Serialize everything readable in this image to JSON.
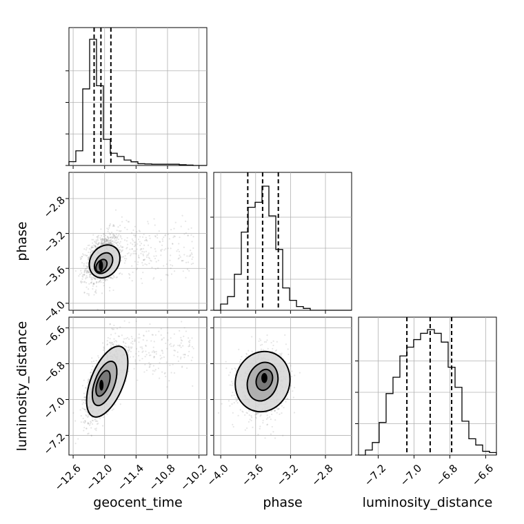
{
  "colors": {
    "background": "#ffffff",
    "axis": "#000000",
    "grid": "#b0b0b0",
    "scatter": "#888888",
    "level_light": "#d6d6d6",
    "level_mid": "#a8a8a8",
    "level_dark": "#707070",
    "level_core": "#000000"
  },
  "chart_data": {
    "type": "corner",
    "parameters": [
      "geocent_time",
      "phase",
      "luminosity_distance"
    ],
    "axis_labels": {
      "x": [
        "geocent_time",
        "phase",
        "luminosity_distance"
      ],
      "y": [
        "",
        "phase",
        "luminosity_distance"
      ]
    },
    "ranges": {
      "geocent_time": [
        -12.68,
        -10.05
      ],
      "phase": [
        -4.08,
        -2.5
      ],
      "luminosity_distance": [
        -7.31,
        -6.54
      ]
    },
    "ticks": {
      "geocent_time": [
        -12.6,
        -12.0,
        -11.4,
        -10.8,
        -10.2
      ],
      "phase": [
        -4.0,
        -3.6,
        -3.2,
        -2.8
      ],
      "luminosity_distance": [
        -7.2,
        -7.0,
        -6.8,
        -6.6
      ]
    },
    "tick_labels": {
      "geocent_time": [
        "−12.6",
        "−12.0",
        "−11.4",
        "−10.8",
        "−10.2"
      ],
      "phase": [
        "−4.0",
        "−3.6",
        "−3.2",
        "−2.8"
      ],
      "luminosity_distance": [
        "−7.2",
        "−7.0",
        "−6.8",
        "−6.6"
      ]
    },
    "grid": true,
    "histograms": [
      {
        "parameter": "geocent_time",
        "bin_edges": [
          -12.68,
          -12.5485,
          -12.417,
          -12.2855,
          -12.154,
          -12.0225,
          -11.891,
          -11.7595,
          -11.628,
          -11.4965,
          -11.365,
          -11.2335,
          -11.102,
          -10.9705,
          -10.839,
          -10.7075,
          -10.576,
          -10.4445,
          -10.313,
          -10.1815,
          -10.05
        ],
        "counts": [
          0.03,
          0.116,
          0.607,
          1.0,
          0.632,
          0.207,
          0.097,
          0.071,
          0.043,
          0.029,
          0.014,
          0.012,
          0.01,
          0.01,
          0.01,
          0.01,
          0.006,
          0.003,
          0.0,
          0.0
        ],
        "quantiles": [
          -12.2,
          -12.07,
          -11.88
        ]
      },
      {
        "parameter": "phase",
        "bin_edges": [
          -4.08,
          -4.001,
          -3.922,
          -3.843,
          -3.764,
          -3.685,
          -3.606,
          -3.527,
          -3.448,
          -3.369,
          -3.29,
          -3.211,
          -3.132,
          -3.053,
          -2.974,
          -2.895,
          -2.816,
          -2.737,
          -2.658,
          -2.579,
          -2.5
        ],
        "counts": [
          0.0,
          0.05,
          0.11,
          0.29,
          0.63,
          0.83,
          0.87,
          1.0,
          0.76,
          0.49,
          0.18,
          0.08,
          0.03,
          0.015,
          0.0,
          0.0,
          0.0,
          0.0,
          0.0,
          0.0
        ],
        "quantiles": [
          -3.69,
          -3.52,
          -3.34
        ]
      },
      {
        "parameter": "luminosity_distance",
        "bin_edges": [
          -7.31,
          -7.2715,
          -7.233,
          -7.1945,
          -7.156,
          -7.1175,
          -7.079,
          -7.0405,
          -7.002,
          -6.9635,
          -6.925,
          -6.8865,
          -6.848,
          -6.8095,
          -6.771,
          -6.7325,
          -6.694,
          -6.6555,
          -6.617,
          -6.5785,
          -6.54
        ],
        "counts": [
          0.0,
          0.04,
          0.1,
          0.26,
          0.49,
          0.62,
          0.79,
          0.86,
          0.92,
          0.97,
          1.0,
          0.97,
          0.9,
          0.7,
          0.54,
          0.27,
          0.13,
          0.08,
          0.03,
          0.02
        ],
        "quantiles": [
          -7.04,
          -6.91,
          -6.79
        ]
      }
    ],
    "joint_distributions": [
      {
        "x": "geocent_time",
        "y": "phase",
        "mean": [
          -12.05,
          -3.5
        ],
        "std": [
          0.16,
          0.15
        ],
        "correlation": 0.35,
        "tail": {
          "x_range": [
            -11.9,
            -10.3
          ],
          "y_mean": -3.38,
          "y_std": 0.16
        },
        "levels": [
          {
            "mean": [
              -12.0,
              -3.52
            ],
            "r": [
              0.27,
              0.2
            ],
            "angle_deg": 55
          },
          {
            "mean": [
              -12.02,
              -3.54
            ],
            "r": [
              0.15,
              0.13
            ],
            "angle_deg": 55
          },
          {
            "mean": [
              -12.06,
              -3.57
            ],
            "r": [
              0.09,
              0.08
            ],
            "angle_deg": 55
          },
          {
            "mean": [
              -12.07,
              -3.57
            ],
            "r": [
              0.04,
              0.06
            ],
            "angle_deg": 0
          }
        ]
      },
      {
        "x": "geocent_time",
        "y": "luminosity_distance",
        "mean": [
          -12.05,
          -6.92
        ],
        "std": [
          0.17,
          0.1
        ],
        "correlation": 0.6,
        "tail": {
          "x_range": [
            -11.9,
            -10.3
          ],
          "y_mean": -6.73,
          "y_std": 0.08
        },
        "levels": [
          {
            "mean": [
              -11.95,
              -6.9
            ],
            "r": [
              0.31,
              0.21
            ],
            "angle_deg": 68
          },
          {
            "mean": [
              -12.0,
              -6.91
            ],
            "r": [
              0.19,
              0.13
            ],
            "angle_deg": 70
          },
          {
            "mean": [
              -12.03,
              -6.91
            ],
            "r": [
              0.11,
              0.075
            ],
            "angle_deg": 70
          },
          {
            "mean": [
              -12.06,
              -6.92
            ],
            "r": [
              0.04,
              0.03
            ],
            "angle_deg": 0
          }
        ]
      },
      {
        "x": "phase",
        "y": "luminosity_distance",
        "mean": [
          -3.52,
          -6.91
        ],
        "std": [
          0.14,
          0.09
        ],
        "correlation": 0.1,
        "tail": null,
        "levels": [
          {
            "mean": [
              -3.52,
              -6.9
            ],
            "r": [
              0.31,
              0.17
            ],
            "angle_deg": 72
          },
          {
            "mean": [
              -3.52,
              -6.9
            ],
            "r": [
              0.17,
              0.11
            ],
            "angle_deg": 72
          },
          {
            "mean": [
              -3.5,
              -6.89
            ],
            "r": [
              0.09,
              0.06
            ],
            "angle_deg": 70
          },
          {
            "mean": [
              -3.5,
              -6.88
            ],
            "r": [
              0.035,
              0.028
            ],
            "angle_deg": 0
          }
        ]
      }
    ]
  }
}
